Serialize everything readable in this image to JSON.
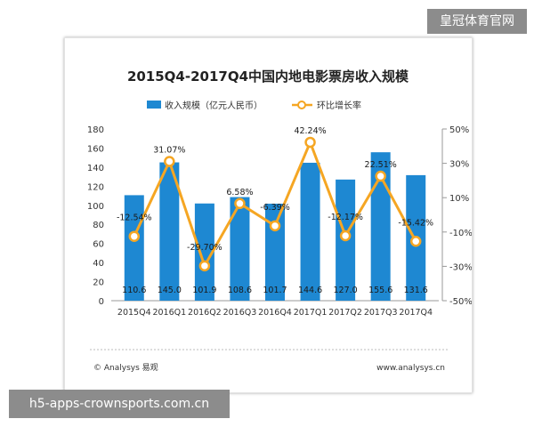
{
  "watermarks": {
    "top_right": "皇冠体育官网",
    "bottom_left": "h5-apps-crownsports.com.cn"
  },
  "footer": {
    "left": "© Analysys 易观",
    "right": "www.analysys.cn"
  },
  "colors": {
    "bar": "#1e88d2",
    "line": "#f5a623",
    "text": "#333333",
    "axis": "#999999"
  },
  "chart_data": {
    "type": "bar",
    "title": "2015Q4-2017Q4中国内地电影票房收入规模",
    "categories": [
      "2015Q4",
      "2016Q1",
      "2016Q2",
      "2016Q3",
      "2016Q4",
      "2017Q1",
      "2017Q2",
      "2017Q3",
      "2017Q4"
    ],
    "series": [
      {
        "name": "收入规模（亿元人民币）",
        "type": "bar",
        "axis": "left",
        "values": [
          110.6,
          145.0,
          101.9,
          108.6,
          101.7,
          144.6,
          127.0,
          155.6,
          131.6
        ],
        "labels": [
          "110.6",
          "145.0",
          "101.9",
          "108.6",
          "101.7",
          "144.6",
          "127.0",
          "155.6",
          "131.6"
        ]
      },
      {
        "name": "环比增长率",
        "type": "line",
        "axis": "right",
        "values": [
          -12.54,
          31.07,
          -29.7,
          6.58,
          -6.39,
          42.24,
          -12.17,
          22.51,
          -15.42
        ],
        "labels": [
          "-12.54%",
          "31.07%",
          "-29.70%",
          "6.58%",
          "-6.39%",
          "42.24%",
          "-12.17%",
          "22.51%",
          "-15.42%"
        ]
      }
    ],
    "y_left": {
      "min": 0,
      "max": 180,
      "ticks": [
        "0",
        "20",
        "40",
        "60",
        "80",
        "100",
        "120",
        "140",
        "160",
        "180"
      ]
    },
    "y_right": {
      "min": -50,
      "max": 50,
      "ticks": [
        "-50%",
        "-30%",
        "-10%",
        "10%",
        "30%",
        "50%"
      ]
    },
    "legend": "top-center",
    "grid": false
  }
}
